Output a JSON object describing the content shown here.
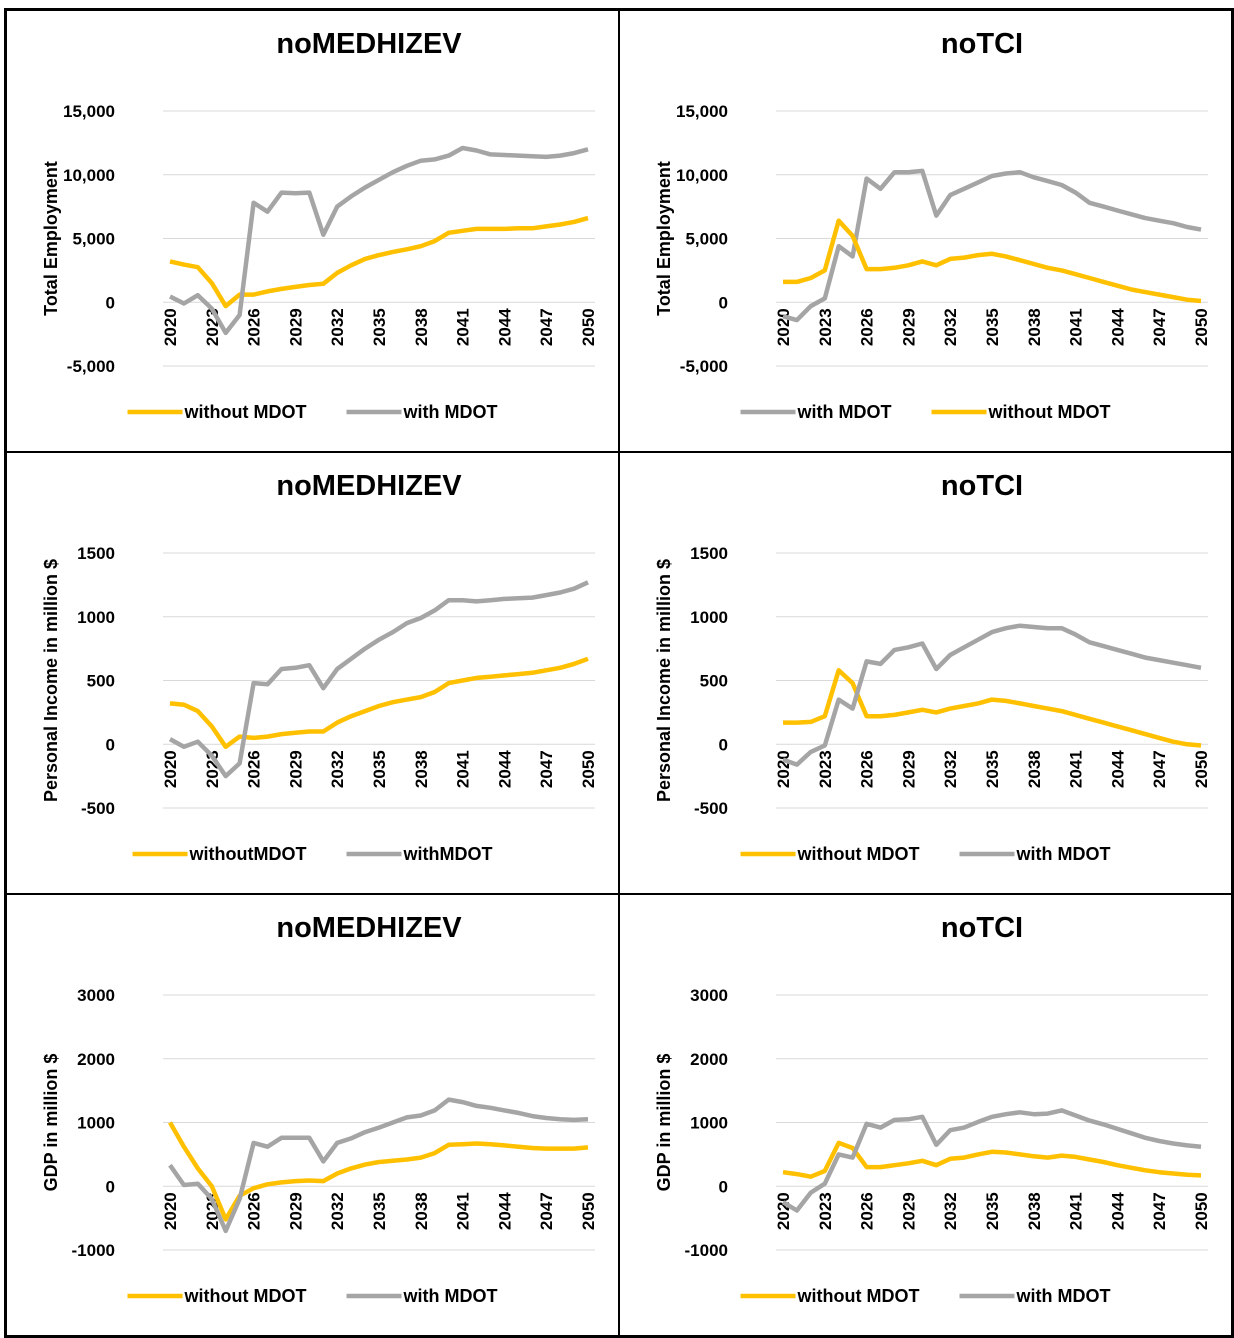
{
  "chart_data": [
    {
      "type": "line",
      "title": "noMEDHIZEV",
      "ylabel": "Total Employment",
      "categories": [
        "2020",
        null,
        null,
        "2023",
        null,
        null,
        "2026",
        null,
        null,
        "2029",
        null,
        null,
        "2032",
        null,
        null,
        "2035",
        null,
        null,
        "2038",
        null,
        null,
        "2041",
        null,
        null,
        "2044",
        null,
        null,
        "2047",
        null,
        null,
        "2050"
      ],
      "ylim": [
        -5000,
        15000
      ],
      "yticks": [
        {
          "value": -5000,
          "label": "-5,000"
        },
        0,
        {
          "value": 5000,
          "label": "5,000"
        },
        {
          "value": 10000,
          "label": "10,000"
        },
        {
          "value": 15000,
          "label": "15,000"
        }
      ],
      "grid": true,
      "legend": "bottom",
      "series": [
        {
          "name": "without MDOT",
          "color": "#FFC000",
          "values": [
            3200,
            2950,
            2750,
            1500,
            -300,
            600,
            600,
            850,
            1050,
            1200,
            1350,
            1450,
            2300,
            2900,
            3400,
            3700,
            3950,
            4150,
            4400,
            4800,
            5450,
            5600,
            5750,
            5750,
            5750,
            5800,
            5800,
            5950,
            6100,
            6300,
            6600
          ]
        },
        {
          "name": "with MDOT",
          "color": "#A5A5A5",
          "values": [
            450,
            -100,
            550,
            -500,
            -2400,
            -1000,
            7800,
            7100,
            8600,
            8550,
            8600,
            5300,
            7500,
            8300,
            9000,
            9600,
            10200,
            10700,
            11100,
            11200,
            11500,
            12100,
            11900,
            11600,
            11550,
            11500,
            11450,
            11400,
            11500,
            11700,
            12000
          ]
        }
      ]
    },
    {
      "type": "line",
      "title": "noTCI",
      "ylabel": "Total Employment",
      "categories": [
        "2020",
        null,
        null,
        "2023",
        null,
        null,
        "2026",
        null,
        null,
        "2029",
        null,
        null,
        "2032",
        null,
        null,
        "2035",
        null,
        null,
        "2038",
        null,
        null,
        "2041",
        null,
        null,
        "2044",
        null,
        null,
        "2047",
        null,
        null,
        "2050"
      ],
      "ylim": [
        -5000,
        15000
      ],
      "yticks": [
        {
          "value": -5000,
          "label": "-5,000"
        },
        0,
        {
          "value": 5000,
          "label": "5,000"
        },
        {
          "value": 10000,
          "label": "10,000"
        },
        {
          "value": 15000,
          "label": "15,000"
        }
      ],
      "grid": true,
      "legend": "bottom",
      "series": [
        {
          "name": "with MDOT",
          "color": "#A5A5A5",
          "values": [
            -1100,
            -1400,
            -300,
            300,
            4400,
            3600,
            9700,
            8900,
            10200,
            10200,
            10300,
            6800,
            8400,
            8900,
            9400,
            9900,
            10100,
            10200,
            9800,
            9500,
            9200,
            8600,
            7800,
            7500,
            7200,
            6900,
            6600,
            6400,
            6200,
            5900,
            5700
          ]
        },
        {
          "name": "without MDOT",
          "color": "#FFC000",
          "values": [
            1600,
            1600,
            1900,
            2500,
            6400,
            5200,
            2600,
            2600,
            2700,
            2900,
            3200,
            2900,
            3400,
            3500,
            3700,
            3800,
            3600,
            3300,
            3000,
            2700,
            2500,
            2200,
            1900,
            1600,
            1300,
            1000,
            800,
            600,
            400,
            200,
            100
          ]
        }
      ]
    },
    {
      "type": "line",
      "title": "noMEDHIZEV",
      "ylabel": "Personal Income in million $",
      "categories": [
        "2020",
        null,
        null,
        "2023",
        null,
        null,
        "2026",
        null,
        null,
        "2029",
        null,
        null,
        "2032",
        null,
        null,
        "2035",
        null,
        null,
        "2038",
        null,
        null,
        "2041",
        null,
        null,
        "2044",
        null,
        null,
        "2047",
        null,
        null,
        "2050"
      ],
      "ylim": [
        -500,
        1500
      ],
      "yticks": [
        -500,
        0,
        500,
        1000,
        1500
      ],
      "grid": true,
      "legend": "bottom",
      "series": [
        {
          "name": "withoutMDOT",
          "color": "#FFC000",
          "values": [
            320,
            310,
            260,
            140,
            -20,
            60,
            50,
            60,
            80,
            90,
            100,
            100,
            170,
            220,
            260,
            300,
            330,
            350,
            370,
            410,
            480,
            500,
            520,
            530,
            540,
            550,
            560,
            580,
            600,
            630,
            670
          ]
        },
        {
          "name": "withMDOT",
          "color": "#A5A5A5",
          "values": [
            40,
            -20,
            20,
            -90,
            -250,
            -150,
            480,
            470,
            590,
            600,
            620,
            440,
            590,
            670,
            750,
            820,
            880,
            950,
            990,
            1050,
            1130,
            1130,
            1120,
            1130,
            1140,
            1145,
            1150,
            1170,
            1190,
            1220,
            1270
          ]
        }
      ]
    },
    {
      "type": "line",
      "title": "noTCI",
      "ylabel": "Personal Income in million $",
      "categories": [
        "2020",
        null,
        null,
        "2023",
        null,
        null,
        "2026",
        null,
        null,
        "2029",
        null,
        null,
        "2032",
        null,
        null,
        "2035",
        null,
        null,
        "2038",
        null,
        null,
        "2041",
        null,
        null,
        "2044",
        null,
        null,
        "2047",
        null,
        null,
        "2050"
      ],
      "ylim": [
        -500,
        1500
      ],
      "yticks": [
        -500,
        0,
        500,
        1000,
        1500
      ],
      "grid": true,
      "legend": "bottom",
      "series": [
        {
          "name": "without MDOT",
          "color": "#FFC000",
          "values": [
            170,
            170,
            175,
            220,
            580,
            480,
            220,
            220,
            230,
            250,
            270,
            250,
            280,
            300,
            320,
            350,
            340,
            320,
            300,
            280,
            260,
            230,
            200,
            170,
            140,
            110,
            80,
            50,
            20,
            0,
            -10
          ]
        },
        {
          "name": "with MDOT",
          "color": "#A5A5A5",
          "values": [
            -120,
            -160,
            -60,
            -10,
            350,
            280,
            650,
            630,
            740,
            760,
            790,
            590,
            700,
            760,
            820,
            880,
            910,
            930,
            920,
            910,
            910,
            860,
            800,
            770,
            740,
            710,
            680,
            660,
            640,
            620,
            600
          ]
        }
      ]
    },
    {
      "type": "line",
      "title": "noMEDHIZEV",
      "ylabel": "GDP in million $",
      "categories": [
        "2020",
        null,
        null,
        "2023",
        null,
        null,
        "2026",
        null,
        null,
        "2029",
        null,
        null,
        "2032",
        null,
        null,
        "2035",
        null,
        null,
        "2038",
        null,
        null,
        "2041",
        null,
        null,
        "2044",
        null,
        null,
        "2047",
        null,
        null,
        "2050"
      ],
      "ylim": [
        -1000,
        3000
      ],
      "yticks": [
        -1000,
        0,
        1000,
        2000,
        3000
      ],
      "grid": true,
      "legend": "bottom",
      "series": [
        {
          "name": "without MDOT",
          "color": "#FFC000",
          "values": [
            1000,
            620,
            280,
            0,
            -520,
            -150,
            -30,
            30,
            60,
            80,
            90,
            80,
            200,
            280,
            340,
            380,
            400,
            420,
            450,
            520,
            650,
            660,
            670,
            660,
            640,
            620,
            600,
            590,
            590,
            590,
            610
          ]
        },
        {
          "name": "with MDOT",
          "color": "#A5A5A5",
          "values": [
            330,
            20,
            40,
            -200,
            -700,
            -200,
            680,
            620,
            760,
            760,
            760,
            390,
            680,
            750,
            850,
            920,
            1000,
            1080,
            1110,
            1190,
            1360,
            1320,
            1260,
            1230,
            1190,
            1150,
            1100,
            1070,
            1050,
            1040,
            1050
          ]
        }
      ]
    },
    {
      "type": "line",
      "title": "noTCI",
      "ylabel": "GDP in million $",
      "categories": [
        "2020",
        null,
        null,
        "2023",
        null,
        null,
        "2026",
        null,
        null,
        "2029",
        null,
        null,
        "2032",
        null,
        null,
        "2035",
        null,
        null,
        "2038",
        null,
        null,
        "2041",
        null,
        null,
        "2044",
        null,
        null,
        "2047",
        null,
        null,
        "2050"
      ],
      "ylim": [
        -1000,
        3000
      ],
      "yticks": [
        -1000,
        0,
        1000,
        2000,
        3000
      ],
      "grid": true,
      "legend": "bottom",
      "series": [
        {
          "name": "without MDOT",
          "color": "#FFC000",
          "values": [
            220,
            190,
            150,
            240,
            680,
            600,
            300,
            300,
            330,
            360,
            400,
            330,
            430,
            450,
            500,
            540,
            530,
            500,
            470,
            450,
            480,
            460,
            420,
            380,
            330,
            290,
            250,
            220,
            200,
            180,
            170
          ]
        },
        {
          "name": "with MDOT",
          "color": "#A5A5A5",
          "values": [
            -250,
            -380,
            -100,
            40,
            500,
            450,
            980,
            920,
            1040,
            1050,
            1090,
            650,
            880,
            920,
            1010,
            1090,
            1130,
            1160,
            1130,
            1140,
            1190,
            1110,
            1030,
            970,
            900,
            830,
            760,
            710,
            670,
            640,
            620
          ]
        }
      ]
    }
  ]
}
